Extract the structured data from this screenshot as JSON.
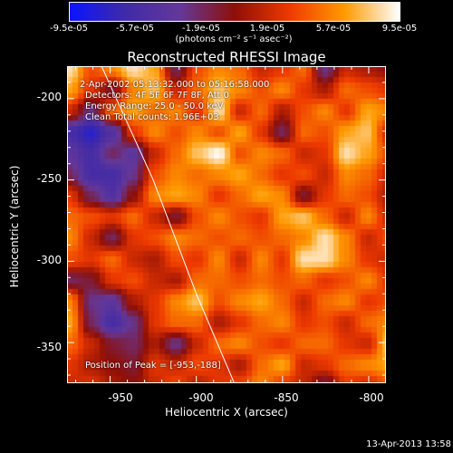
{
  "colorbar": {
    "ticks": [
      "-9.5e-05",
      "-5.7e-05",
      "-1.9e-05",
      "1.9e-05",
      "5.7e-05",
      "9.5e-05"
    ],
    "units": "(photons cm⁻² s⁻¹ asec⁻²)",
    "range": [
      -9.5e-05,
      9.5e-05
    ],
    "colors": [
      "#0a14ff",
      "#3f2aa8",
      "#64389a",
      "#8e0f08",
      "#ee3a00",
      "#ff9a00",
      "#ffffff"
    ]
  },
  "annotations": {
    "time_range": "2-Apr-2002 05:13:32.000 to 05:16:58.000",
    "detectors": "Detectors: 4F 5F 6F 7F 8F, Att 0",
    "energy": "Energy Range: 25.0 - 50.0 keV",
    "clean": "Clean     Total counts: 1.96E+03",
    "peak": "Position of Peak = [-953,-188]"
  },
  "footer": "13-Apr-2013 13:58",
  "chart_data": {
    "type": "heatmap",
    "title": "Reconstructed RHESSI Image",
    "xlabel": "Heliocentric X (arcsec)",
    "ylabel": "Heliocentric Y (arcsec)",
    "xlim": [
      -975,
      -790
    ],
    "ylim": [
      -375,
      -180
    ],
    "xticks": [
      -950,
      -900,
      -850,
      -800
    ],
    "yticks": [
      -200,
      -250,
      -300,
      -350
    ],
    "colorbar_units": "photons cm-2 s-1 asec-2",
    "peak_position": [
      -953,
      -188
    ],
    "limb_line": {
      "x": [
        -955,
        -925,
        -900,
        -878
      ],
      "y": [
        -180,
        -250,
        -320,
        -375
      ]
    },
    "grid": {
      "rows": 16,
      "cols": 16,
      "z": [
        [
          0.9,
          0.4,
          0.6,
          0.9,
          0.7,
          -0.2,
          0.4,
          0.6,
          0.5,
          0.2,
          0.3,
          0.5,
          -0.3,
          0.2,
          0.1,
          0.0
        ],
        [
          0.7,
          0.3,
          -0.1,
          0.6,
          0.8,
          0.2,
          0.5,
          0.8,
          0.6,
          0.4,
          0.6,
          0.3,
          0.1,
          0.5,
          0.4,
          0.3
        ],
        [
          0.2,
          -0.3,
          0.5,
          0.7,
          0.5,
          0.6,
          0.3,
          0.9,
          0.2,
          0.5,
          0.1,
          0.4,
          0.6,
          0.3,
          0.7,
          0.6
        ],
        [
          -0.6,
          -0.8,
          -0.5,
          0.3,
          0.6,
          0.4,
          0.6,
          0.4,
          0.7,
          0.3,
          -0.2,
          0.5,
          0.4,
          0.7,
          0.8,
          0.2
        ],
        [
          -0.4,
          -0.6,
          -0.2,
          -0.4,
          0.2,
          0.5,
          0.8,
          1.0,
          0.4,
          0.6,
          0.5,
          0.2,
          0.3,
          0.9,
          0.7,
          0.4
        ],
        [
          -0.2,
          -0.6,
          -0.6,
          -0.3,
          0.4,
          0.6,
          0.5,
          0.6,
          0.7,
          0.5,
          0.3,
          0.4,
          0.2,
          0.6,
          0.5,
          0.2
        ],
        [
          0.3,
          -0.2,
          -0.5,
          0.0,
          0.6,
          0.7,
          0.6,
          0.3,
          0.5,
          0.7,
          0.6,
          -0.1,
          0.3,
          0.5,
          0.4,
          0.1
        ],
        [
          0.5,
          0.4,
          0.3,
          0.5,
          0.2,
          -0.1,
          0.4,
          0.6,
          0.4,
          0.3,
          0.7,
          0.8,
          0.5,
          0.2,
          0.6,
          0.2
        ],
        [
          0.6,
          0.2,
          -0.2,
          0.3,
          0.4,
          0.6,
          0.5,
          0.4,
          0.5,
          0.4,
          0.5,
          0.6,
          0.9,
          0.6,
          0.2,
          0.4
        ],
        [
          0.4,
          0.3,
          0.5,
          0.2,
          0.1,
          0.4,
          0.3,
          0.6,
          0.2,
          0.6,
          0.3,
          0.9,
          0.9,
          0.6,
          0.3,
          0.2
        ],
        [
          -0.2,
          -0.1,
          0.3,
          0.4,
          0.2,
          0.1,
          0.5,
          0.5,
          0.4,
          0.5,
          0.4,
          0.5,
          0.3,
          0.4,
          0.6,
          0.3
        ],
        [
          0.6,
          -0.3,
          -0.4,
          0.1,
          0.3,
          0.6,
          0.8,
          0.4,
          0.6,
          0.7,
          0.5,
          0.2,
          0.5,
          0.6,
          0.3,
          0.4
        ],
        [
          0.7,
          -0.2,
          -0.6,
          -0.3,
          0.3,
          0.5,
          0.5,
          0.1,
          0.3,
          0.5,
          0.6,
          0.3,
          0.4,
          0.2,
          0.5,
          0.6
        ],
        [
          0.5,
          0.2,
          -0.1,
          -0.2,
          0.1,
          -0.3,
          0.2,
          0.5,
          0.6,
          0.4,
          0.3,
          0.5,
          0.5,
          0.3,
          0.2,
          0.8
        ],
        [
          0.3,
          0.1,
          0.0,
          -0.1,
          0.3,
          0.2,
          0.4,
          0.3,
          0.1,
          0.5,
          0.7,
          0.2,
          0.3,
          0.5,
          0.6,
          0.7
        ],
        [
          0.2,
          0.3,
          0.1,
          0.0,
          0.2,
          0.4,
          0.1,
          0.3,
          0.4,
          0.6,
          0.3,
          0.2,
          -0.2,
          0.3,
          0.2,
          0.4
        ]
      ]
    }
  }
}
